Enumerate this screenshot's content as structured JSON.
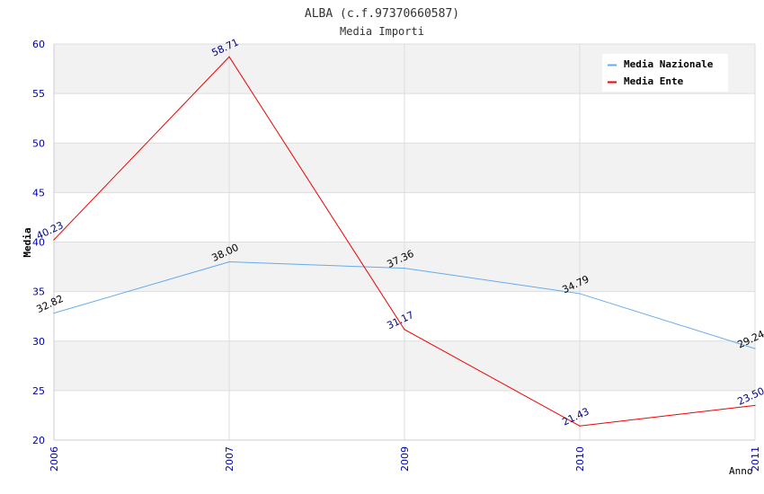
{
  "chart_data": {
    "type": "line",
    "title": "ALBA (c.f.97370660587)",
    "subtitle": "Media Importi",
    "xlabel": "Anno",
    "ylabel": "Media",
    "categories": [
      "2006",
      "2007",
      "2009",
      "2010",
      "2011"
    ],
    "ylim": [
      20,
      60
    ],
    "yticks": [
      "20",
      "25",
      "30",
      "35",
      "40",
      "45",
      "50",
      "55",
      "60"
    ],
    "grid": true,
    "legend_position": "top-right",
    "series": [
      {
        "name": "Media Nazionale",
        "color": "#66aaee",
        "values": [
          32.82,
          38.0,
          37.36,
          34.79,
          29.24
        ],
        "labels": [
          "32.82",
          "38.00",
          "37.36",
          "34.79",
          "29.24"
        ],
        "label_color": "#000000"
      },
      {
        "name": "Media Ente",
        "color": "#ee0000",
        "values": [
          40.23,
          58.71,
          31.17,
          21.43,
          23.5
        ],
        "labels": [
          "40.23",
          "58.71",
          "31.17",
          "21.43",
          "23.50"
        ],
        "label_color": "#000080"
      }
    ],
    "colors": {
      "axis_text": "#0000aa",
      "band": "#f2f2f2",
      "grid_line": "#dddddd"
    }
  }
}
